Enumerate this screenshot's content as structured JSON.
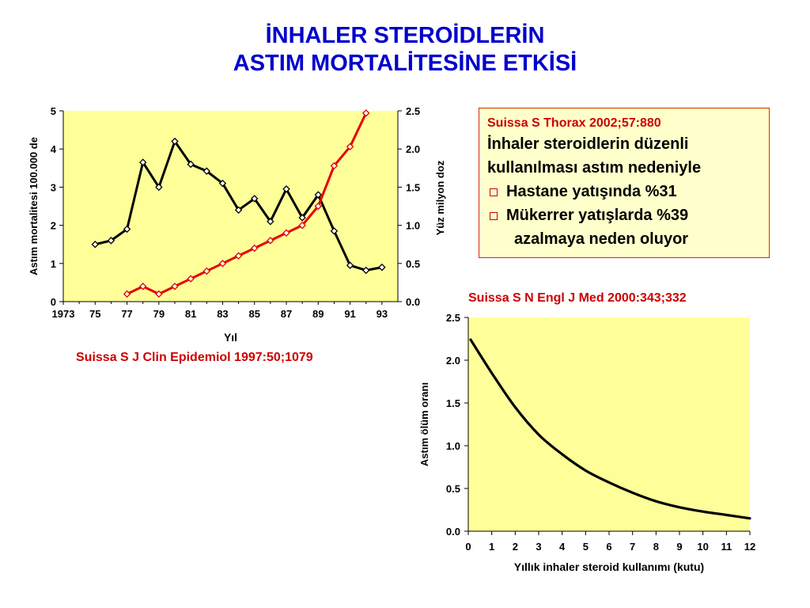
{
  "title": {
    "line1": "İNHALER STEROİDLERİN",
    "line2": "ASTIM MORTALİTESİNE ETKİSİ"
  },
  "colors": {
    "title": "#0000cc",
    "reference": "#cc0000",
    "plot_bg": "#ffff99",
    "mortality_line": "#000000",
    "dose_line": "#e60000",
    "box_bg": "#ffffcc",
    "box_border": "#cc3300"
  },
  "ref_left": "Suissa S  J Clin Epidemiol 1997:50;1079",
  "ref_right": "Suissa S  N Engl J Med 2000:343;332",
  "textbox": {
    "citation": "Suissa S  Thorax 2002;57:880",
    "line1": "İnhaler steroidlerin düzenli",
    "line2": "kullanılması astım nedeniyle",
    "bullet1": "Hastane yatışında %31",
    "bullet2": "Mükerrer yatışlarda %39",
    "bullet2_cont": "azalmaya neden oluyor"
  },
  "chart_data": [
    {
      "type": "line",
      "xlabel": "Yıl",
      "ylabel": "Astım mortalitesi 100.000 de",
      "y2label": "Yüz milyon doz",
      "xlim": [
        1973,
        1994
      ],
      "ylim": [
        0,
        5
      ],
      "y2lim": [
        0,
        2.5
      ],
      "x_ticks": [
        "1973",
        "75",
        "77",
        "79",
        "81",
        "83",
        "85",
        "87",
        "89",
        "91",
        "93"
      ],
      "y_ticks": [
        "0",
        "1",
        "2",
        "3",
        "4",
        "5"
      ],
      "y2_ticks": [
        "0.0",
        "0.5",
        "1.0",
        "1.5",
        "2.0",
        "2.5"
      ],
      "series": [
        {
          "axis": "left",
          "color": "#000000",
          "x": [
            1975,
            1976,
            1977,
            1978,
            1979,
            1980,
            1981,
            1982,
            1983,
            1984,
            1985,
            1986,
            1987,
            1988,
            1989,
            1990,
            1991,
            1992,
            1993
          ],
          "values": [
            1.5,
            1.6,
            1.9,
            3.65,
            3.0,
            4.2,
            3.6,
            3.42,
            3.1,
            2.4,
            2.7,
            2.1,
            2.95,
            2.2,
            2.8,
            1.85,
            0.95,
            0.82,
            0.9
          ]
        },
        {
          "axis": "right",
          "color": "#e60000",
          "x": [
            1977,
            1978,
            1979,
            1980,
            1981,
            1982,
            1983,
            1984,
            1985,
            1986,
            1987,
            1988,
            1989,
            1990,
            1991,
            1992
          ],
          "values": [
            0.1,
            0.2,
            0.1,
            0.2,
            0.3,
            0.4,
            0.5,
            0.6,
            0.7,
            0.8,
            0.9,
            1.0,
            1.25,
            1.78,
            2.03,
            2.47
          ]
        }
      ]
    },
    {
      "type": "line",
      "xlabel": "Yıllık inhaler steroid kullanımı (kutu)",
      "ylabel": "Astım ölüm oranı",
      "xlim": [
        0,
        12
      ],
      "ylim": [
        0,
        2.5
      ],
      "x_ticks": [
        "0",
        "1",
        "2",
        "3",
        "4",
        "5",
        "6",
        "7",
        "8",
        "9",
        "10",
        "11",
        "12"
      ],
      "y_ticks": [
        "0.0",
        "0.5",
        "1.0",
        "1.5",
        "2.0",
        "2.5"
      ],
      "series": [
        {
          "color": "#000000",
          "x": [
            0.1,
            1,
            2,
            3,
            4,
            5,
            6,
            7,
            8,
            9,
            10,
            11,
            12
          ],
          "values": [
            2.24,
            1.85,
            1.45,
            1.13,
            0.9,
            0.71,
            0.57,
            0.45,
            0.35,
            0.28,
            0.23,
            0.19,
            0.15
          ]
        }
      ]
    }
  ]
}
